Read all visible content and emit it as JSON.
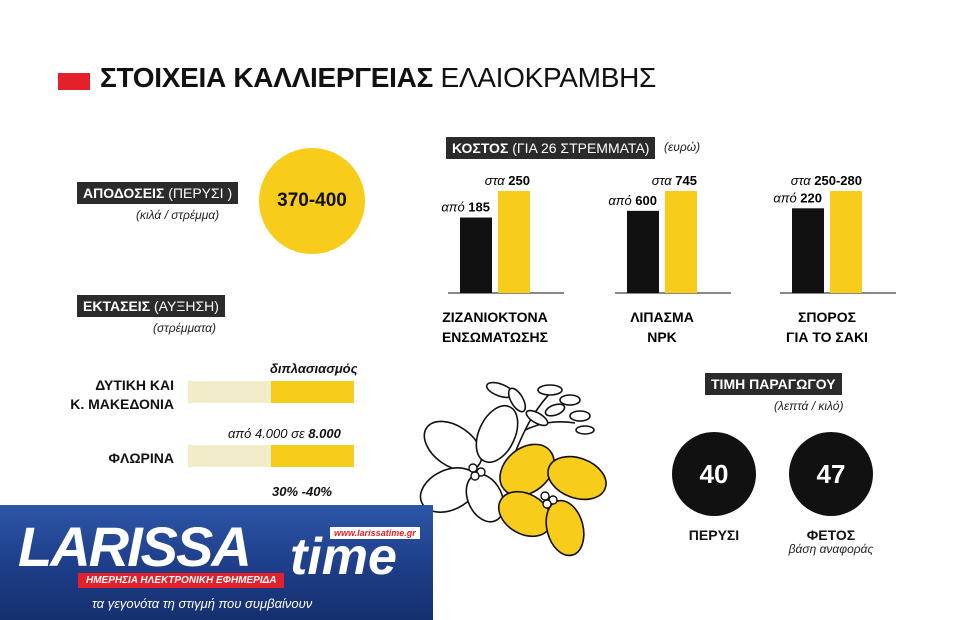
{
  "title": {
    "bold": "ΣΤΟΙΧΕΙΑ ΚΑΛΛΙΕΡΓΕΙΑΣ",
    "light": "ΕΛΑΙΟΚΡΑΜΒΗΣ"
  },
  "yields": {
    "label": "ΑΠΟΔΟΣΕΙΣ",
    "label_paren": "(ΠΕΡΥΣΙ )",
    "unit": "(κιλά / στρέμμα)",
    "value": "370-400"
  },
  "areas": {
    "label": "ΕΚΤΑΣΕΙΣ",
    "label_paren": "(ΑΥΞΗΣΗ)",
    "unit": "(στρέμματα)",
    "rows": [
      {
        "name_line1": "ΔΥΤΙΚΗ ΚΑΙ",
        "name_line2": "Κ. ΜΑΚΕΔΟΝΙΑ",
        "note_plain": "",
        "note_bold": "διπλασιασμός",
        "fill": 0.5
      },
      {
        "name_line1": "ΦΛΩΡΙΝΑ",
        "name_line2": "",
        "note_plain": "από 4.000 σε",
        "note_bold": "8.000",
        "fill": 0.5
      },
      {
        "name_line1": "",
        "name_line2": "",
        "note_plain": "",
        "note_bold": "30% -40%",
        "fill": 0.5
      }
    ]
  },
  "cost": {
    "label": "ΚΟΣΤΟΣ",
    "label_paren": "(ΓΙΑ 26 ΣΤΡΕΜΜΑΤΑ)",
    "unit": "(ευρώ)",
    "from_word": "από",
    "to_word": "στα"
  },
  "chart_data": {
    "type": "bar",
    "title": "ΚΟΣΤΟΣ (ΓΙΑ 26 ΣΤΡΕΜΜΑΤΑ) (ευρώ)",
    "categories": [
      "ΖΙΖΑΝΙΟΚΤΟΝΑ ΕΝΣΩΜΑΤΩΣΗΣ",
      "ΛΙΠΑΣΜΑ NPK",
      "ΣΠΟΡΟΣ ΓΙΑ ΤΟ ΣΑΚΙ"
    ],
    "category_lines": [
      [
        "ΖΙΖΑΝΙΟΚΤΟΝΑ",
        "ΕΝΣΩΜΑΤΩΣΗΣ"
      ],
      [
        "ΛΙΠΑΣΜΑ",
        "NPK"
      ],
      [
        "ΣΠΟΡΟΣ",
        "ΓΙΑ ΤΟ ΣΑΚΙ"
      ]
    ],
    "series": [
      {
        "values": [
          185,
          600,
          220
        ],
        "labels": [
          "185",
          "600",
          "220"
        ],
        "color": "#111111"
      },
      {
        "values": [
          250,
          745,
          265
        ],
        "labels": [
          "250",
          "745",
          "250-280"
        ],
        "color": "#f7cc1b"
      }
    ],
    "note": "bars are scaled per category"
  },
  "price": {
    "label": "ΤΙΜΗ ΠΑΡΑΓΩΓΟΥ",
    "unit": "(λεπτά / κιλό)",
    "items": [
      {
        "value": "40",
        "label": "ΠΕΡΥΣΙ",
        "sub": ""
      },
      {
        "value": "47",
        "label": "ΦΕΤΟΣ",
        "sub": "βάση αναφοράς"
      }
    ]
  },
  "logo": {
    "name": "LARISSA",
    "name2": "time",
    "url": "www.larissatime.gr",
    "strip": "ΗΜΕΡΗΣΙΑ ΗΛΕΚΤΡΟΝΙΚΗ ΕΦΗΜΕΡΙΔΑ",
    "tagline": "τα γεγονότα τη στιγμή που συμβαίνουν"
  },
  "colors": {
    "accent": "#f7cc1b",
    "dark": "#111111",
    "red": "#e4202a",
    "logo_blue": "#1f3f8c"
  }
}
